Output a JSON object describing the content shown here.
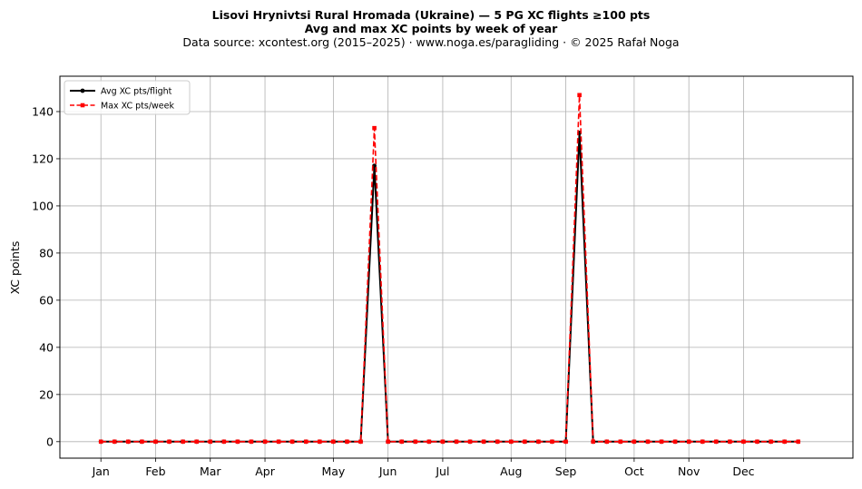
{
  "title_line1": "Lisovi Hrynivtsi Rural Hromada (Ukraine)  —  5 PG XC flights ≥100 pts",
  "title_line2": "Avg and max XC points by week of year",
  "title_line3": "Data source: xcontest.org (2015–2025)  ·  www.noga.es/paragliding  ·  © 2025 Rafał Noga",
  "chart_data": {
    "type": "line",
    "title": "Lisovi Hrynivtsi Rural Hromada (Ukraine)  —  5 PG XC flights ≥100 pts",
    "subtitle": "Avg and max XC points by week of year",
    "xlabel": "",
    "ylabel": "XC points",
    "x_tick_labels": [
      "Jan",
      "Feb",
      "Mar",
      "Apr",
      "May",
      "Jun",
      "Jul",
      "Aug",
      "Sep",
      "Oct",
      "Nov",
      "Dec"
    ],
    "x_tick_weeks": [
      1,
      5,
      9,
      13,
      18,
      22,
      26,
      31,
      35,
      40,
      44,
      48
    ],
    "xlim": [
      -2,
      56
    ],
    "ylim": [
      -7,
      155
    ],
    "y_ticks": [
      0,
      20,
      40,
      60,
      80,
      100,
      120,
      140
    ],
    "grid": true,
    "legend_position": "top-left",
    "x": [
      1,
      2,
      3,
      4,
      5,
      6,
      7,
      8,
      9,
      10,
      11,
      12,
      13,
      14,
      15,
      16,
      17,
      18,
      19,
      20,
      21,
      22,
      23,
      24,
      25,
      26,
      27,
      28,
      29,
      30,
      31,
      32,
      33,
      34,
      35,
      36,
      37,
      38,
      39,
      40,
      41,
      42,
      43,
      44,
      45,
      46,
      47,
      48,
      49,
      50,
      51,
      52
    ],
    "series": [
      {
        "name": "Avg XC pts/flight",
        "color": "#000000",
        "style": "solid",
        "marker": "circle",
        "values": [
          0,
          0,
          0,
          0,
          0,
          0,
          0,
          0,
          0,
          0,
          0,
          0,
          0,
          0,
          0,
          0,
          0,
          0,
          0,
          0,
          117,
          0,
          0,
          0,
          0,
          0,
          0,
          0,
          0,
          0,
          0,
          0,
          0,
          0,
          0,
          131,
          0,
          0,
          0,
          0,
          0,
          0,
          0,
          0,
          0,
          0,
          0,
          0,
          0,
          0,
          0,
          0
        ]
      },
      {
        "name": "Max XC pts/week",
        "color": "#ff0000",
        "style": "dashed",
        "marker": "square",
        "values": [
          0,
          0,
          0,
          0,
          0,
          0,
          0,
          0,
          0,
          0,
          0,
          0,
          0,
          0,
          0,
          0,
          0,
          0,
          0,
          0,
          133,
          0,
          0,
          0,
          0,
          0,
          0,
          0,
          0,
          0,
          0,
          0,
          0,
          0,
          0,
          147,
          0,
          0,
          0,
          0,
          0,
          0,
          0,
          0,
          0,
          0,
          0,
          0,
          0,
          0,
          0,
          0
        ]
      }
    ]
  }
}
